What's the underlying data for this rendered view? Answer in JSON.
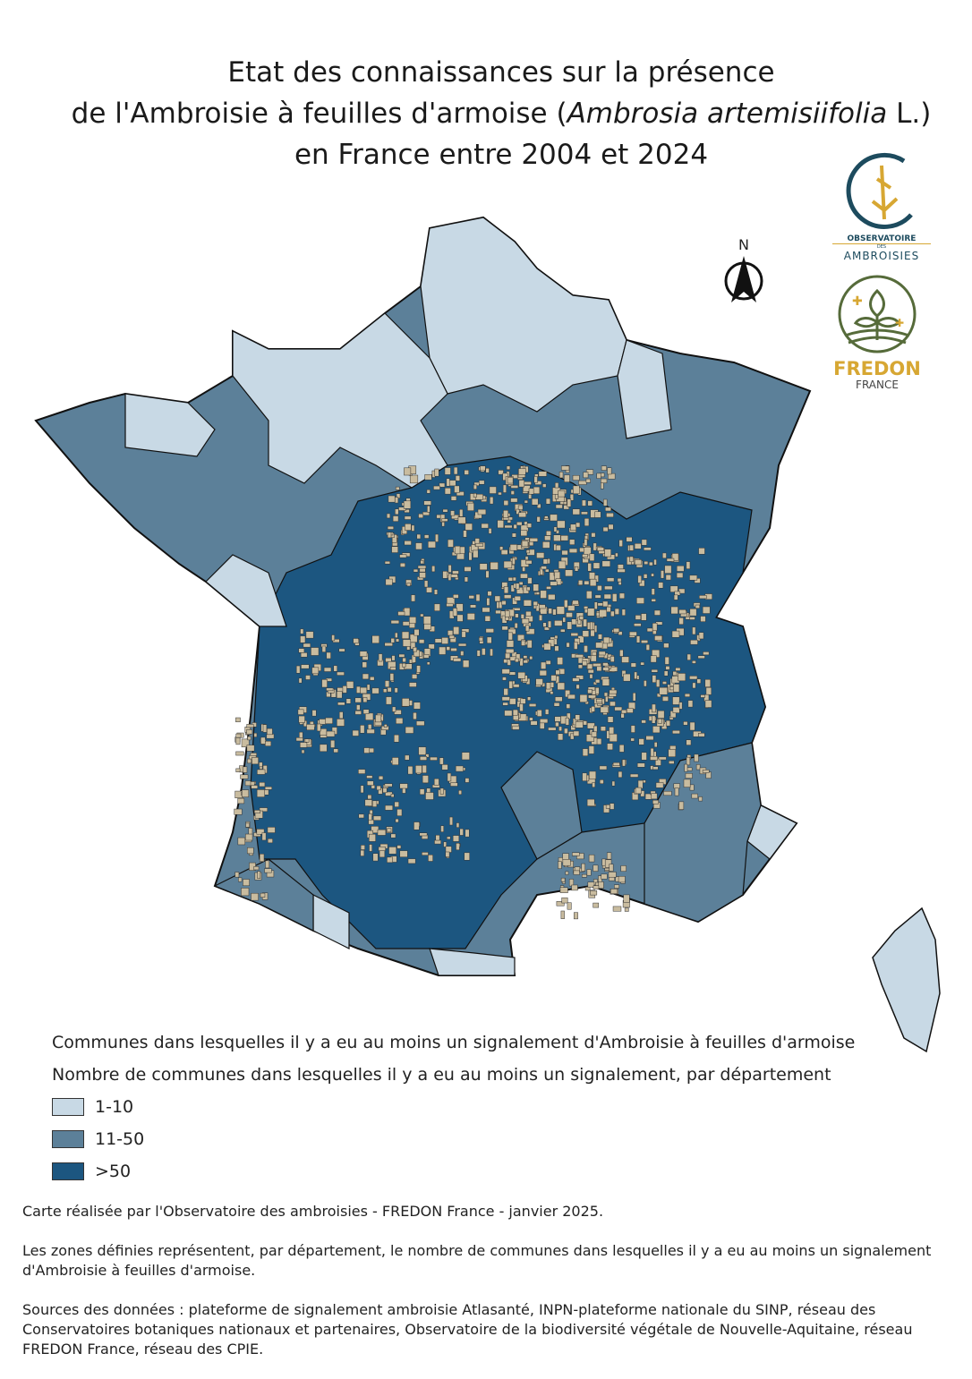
{
  "title": {
    "line1": "Etat des connaissances sur la présence",
    "line2_pre": "de l'Ambroisie à feuilles d'armoise (",
    "line2_italic": "Ambrosia artemisiifolia",
    "line2_post": " L.)",
    "line3": "en France entre 2004 et 2024"
  },
  "logos": {
    "observatoire": {
      "top": "OBSERVATOIRE",
      "mid": "DES",
      "bottom": "AMBROISIES"
    },
    "fredon": {
      "name": "FREDON",
      "sub": "FRANCE"
    }
  },
  "north_arrow": {
    "label": "N"
  },
  "colors": {
    "light": "#c8d9e5",
    "medium": "#5c8099",
    "dark": "#1c5680",
    "communes": "#c9bc9f",
    "outline": "#111111"
  },
  "legend": {
    "communes_label": "Communes dans lesquelles il y a eu au moins un signalement d'Ambroisie à feuilles d'armoise",
    "departments_label": "Nombre de communes dans lesquelles il y a eu au moins un signalement, par département",
    "classes": [
      {
        "label": "1-10",
        "color": "#c8d9e5"
      },
      {
        "label": "11-50",
        "color": "#5c8099"
      },
      {
        "label": ">50",
        "color": "#1c5680"
      }
    ]
  },
  "notes": {
    "credit": "Carte réalisée par l'Observatoire des ambroisies - FREDON France - janvier 2025.",
    "definition": "Les zones définies représentent, par département, le nombre de communes dans lesquelles il y a eu au moins un signalement d'Ambroisie à feuilles d'armoise.",
    "sources": "Sources des données : plateforme de signalement ambroisie Atlasanté, INPN-plateforme nationale du SINP, réseau des Conservatoires botaniques nationaux et partenaires, Observatoire de la biodiversité végétale de Nouvelle-Aquitaine, réseau FREDON France, réseau des CPIE."
  }
}
